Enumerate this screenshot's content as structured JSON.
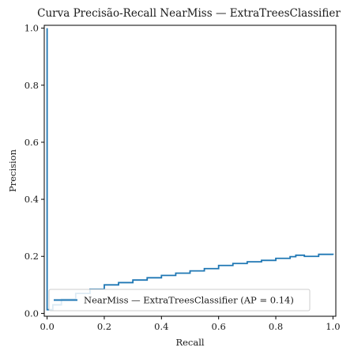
{
  "chart_data": {
    "type": "line",
    "title": "Curva Precisão-Recall NearMiss — ExtraTreesClassifier",
    "xlabel": "Recall",
    "ylabel": "Precision",
    "xlim": [
      -0.01,
      1.01
    ],
    "ylim": [
      -0.01,
      1.01
    ],
    "xticks": [
      0.0,
      0.2,
      0.4,
      0.6,
      0.8,
      1.0
    ],
    "xtick_labels": [
      "0.0",
      "0.2",
      "0.4",
      "0.6",
      "0.8",
      "1.0"
    ],
    "yticks": [
      0.0,
      0.2,
      0.4,
      0.6,
      0.8,
      1.0
    ],
    "ytick_labels": [
      "0.0",
      "0.2",
      "0.4",
      "0.6",
      "0.8",
      "1.0"
    ],
    "grid": false,
    "legend_position": "lower-right",
    "series": [
      {
        "name": "NearMiss — ExtraTreesClassifier (AP = 0.14)",
        "color": "#1f77b4",
        "x": [
          0.0,
          0.0,
          0.0,
          0.005,
          0.02,
          0.05,
          0.1,
          0.15,
          0.2,
          0.25,
          0.3,
          0.35,
          0.4,
          0.45,
          0.5,
          0.55,
          0.6,
          0.65,
          0.7,
          0.75,
          0.8,
          0.85,
          0.87,
          0.9,
          0.95,
          1.0
        ],
        "y": [
          1.0,
          0.02,
          0.013,
          0.013,
          0.03,
          0.05,
          0.07,
          0.085,
          0.1,
          0.108,
          0.117,
          0.125,
          0.133,
          0.141,
          0.149,
          0.157,
          0.168,
          0.175,
          0.181,
          0.186,
          0.193,
          0.199,
          0.204,
          0.2,
          0.207,
          0.205
        ]
      }
    ]
  }
}
